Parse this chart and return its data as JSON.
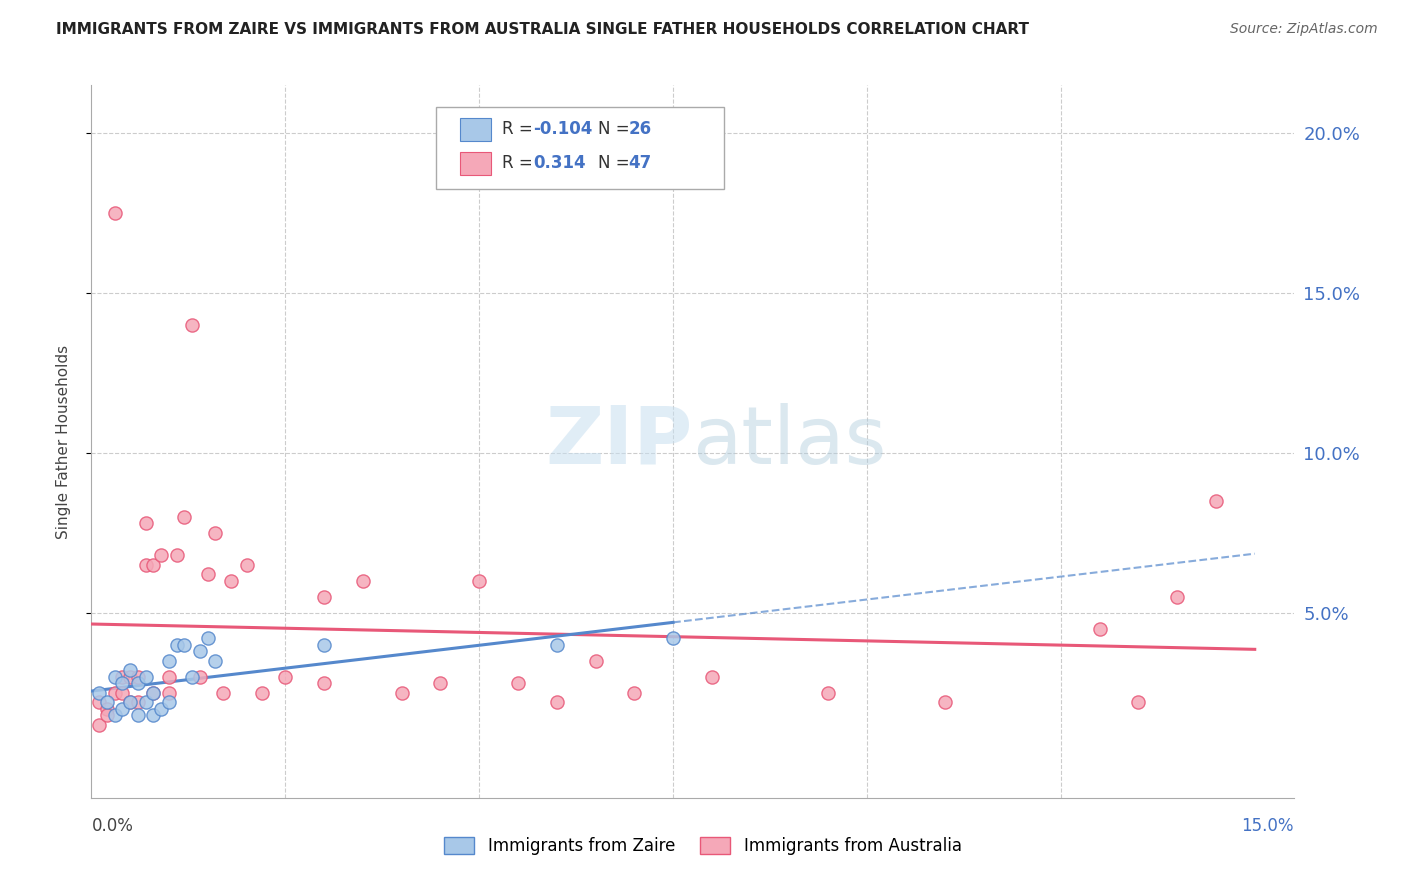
{
  "title": "IMMIGRANTS FROM ZAIRE VS IMMIGRANTS FROM AUSTRALIA SINGLE FATHER HOUSEHOLDS CORRELATION CHART",
  "source": "Source: ZipAtlas.com",
  "ylabel": "Single Father Households",
  "ylabel_right_ticks": [
    "20.0%",
    "15.0%",
    "10.0%",
    "5.0%"
  ],
  "ylabel_right_vals": [
    0.2,
    0.15,
    0.1,
    0.05
  ],
  "xlim": [
    0.0,
    0.155
  ],
  "ylim": [
    -0.008,
    0.215
  ],
  "legend_label1": "Immigrants from Zaire",
  "legend_label2": "Immigrants from Australia",
  "r1": "-0.104",
  "n1": "26",
  "r2": "0.314",
  "n2": "47",
  "color_zaire": "#a8c8e8",
  "color_zaire_line": "#5588cc",
  "color_australia": "#f5a8b8",
  "color_australia_line": "#e85878",
  "background": "#ffffff",
  "zaire_x": [
    0.001,
    0.002,
    0.003,
    0.003,
    0.004,
    0.004,
    0.005,
    0.005,
    0.006,
    0.006,
    0.007,
    0.007,
    0.008,
    0.008,
    0.009,
    0.01,
    0.01,
    0.011,
    0.012,
    0.013,
    0.014,
    0.015,
    0.016,
    0.03,
    0.06,
    0.075
  ],
  "zaire_y": [
    0.025,
    0.022,
    0.03,
    0.018,
    0.028,
    0.02,
    0.032,
    0.022,
    0.028,
    0.018,
    0.03,
    0.022,
    0.025,
    0.018,
    0.02,
    0.035,
    0.022,
    0.04,
    0.04,
    0.03,
    0.038,
    0.042,
    0.035,
    0.04,
    0.04,
    0.042
  ],
  "australia_x": [
    0.001,
    0.001,
    0.002,
    0.002,
    0.003,
    0.003,
    0.004,
    0.004,
    0.005,
    0.005,
    0.006,
    0.006,
    0.007,
    0.007,
    0.008,
    0.008,
    0.009,
    0.01,
    0.01,
    0.011,
    0.012,
    0.013,
    0.014,
    0.015,
    0.016,
    0.017,
    0.018,
    0.02,
    0.022,
    0.025,
    0.03,
    0.03,
    0.035,
    0.04,
    0.045,
    0.05,
    0.055,
    0.06,
    0.065,
    0.07,
    0.08,
    0.095,
    0.11,
    0.13,
    0.135,
    0.14,
    0.145
  ],
  "australia_y": [
    0.022,
    0.015,
    0.02,
    0.018,
    0.175,
    0.025,
    0.025,
    0.03,
    0.03,
    0.022,
    0.03,
    0.022,
    0.078,
    0.065,
    0.065,
    0.025,
    0.068,
    0.025,
    0.03,
    0.068,
    0.08,
    0.14,
    0.03,
    0.062,
    0.075,
    0.025,
    0.06,
    0.065,
    0.025,
    0.03,
    0.055,
    0.028,
    0.06,
    0.025,
    0.028,
    0.06,
    0.028,
    0.022,
    0.035,
    0.025,
    0.03,
    0.025,
    0.022,
    0.045,
    0.022,
    0.055,
    0.085
  ]
}
